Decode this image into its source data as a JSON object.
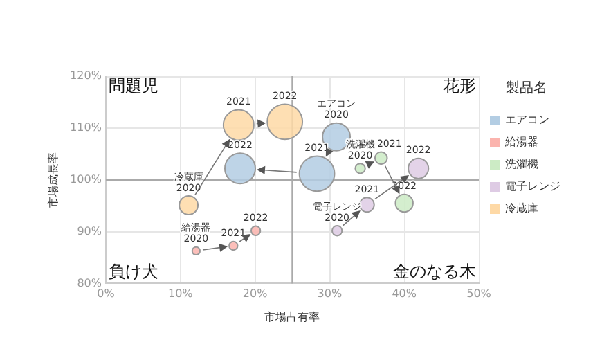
{
  "chart_data": {
    "type": "bubble",
    "xlabel": "市場占有率",
    "ylabel": "市場成長率",
    "legend_title": "製品名",
    "legend": "right",
    "grid": true,
    "xlim": [
      0,
      50
    ],
    "xticks": [
      {
        "value": 0,
        "label": "0%"
      },
      {
        "value": 10,
        "label": "10%"
      },
      {
        "value": 20,
        "label": "20%"
      },
      {
        "value": 30,
        "label": "30%"
      },
      {
        "value": 40,
        "label": "40%"
      },
      {
        "value": 50,
        "label": "50%"
      }
    ],
    "ylim": [
      80,
      120
    ],
    "yticks": [
      {
        "value": 80,
        "label": "80%"
      },
      {
        "value": 90,
        "label": "90%"
      },
      {
        "value": 100,
        "label": "100%"
      },
      {
        "value": 110,
        "label": "110%"
      },
      {
        "value": 120,
        "label": "120%"
      }
    ],
    "ref_lines": [
      {
        "axis": "x",
        "value": 25,
        "color": "#aaaaaa"
      },
      {
        "axis": "y",
        "value": 100,
        "color": "#aaaaaa"
      }
    ],
    "series": [
      {
        "name": "エアコン",
        "color": "#b3cde3",
        "x": [
          30.9,
          28.3,
          18.0
        ],
        "values": [
          108.3,
          101.2,
          102.2
        ],
        "sizes": [
          0.62,
          1,
          0.75
        ]
      },
      {
        "name": "給湯器",
        "color": "#fbb4ae",
        "x": [
          12.1,
          17.1,
          20.1
        ],
        "values": [
          86.3,
          87.3,
          90.2
        ],
        "sizes": [
          0.05,
          0.06,
          0.07
        ]
      },
      {
        "name": "洗濯機",
        "color": "#ccebc5",
        "x": [
          34.1,
          36.9,
          40.0
        ],
        "values": [
          102.2,
          104.2,
          95.5
        ],
        "sizes": [
          0.08,
          0.12,
          0.25
        ]
      },
      {
        "name": "電子レンジ",
        "color": "#decbe4",
        "x": [
          31.0,
          35.0,
          41.9
        ],
        "values": [
          90.2,
          95.2,
          102.2
        ],
        "sizes": [
          0.08,
          0.17,
          0.33
        ]
      },
      {
        "name": "冷蔵庫",
        "color": "#fed9a6",
        "x": [
          11.1,
          17.8,
          24.0
        ],
        "values": [
          95.1,
          110.6,
          111.2
        ],
        "sizes": [
          0.28,
          0.75,
          1
        ]
      }
    ],
    "annotations": [
      "問題児",
      "花形",
      "負け犬",
      "金のなる木",
      {
        "text": "エアコン\n2020",
        "x": 30.9,
        "y": 108.3
      },
      {
        "text": "2021",
        "x": 28.3,
        "y": 101.2
      },
      {
        "text": "2022",
        "x": 18.0,
        "y": 102.2
      },
      {
        "text": "給湯器\n2020",
        "x": 12.1,
        "y": 86.3
      },
      {
        "text": "2021",
        "x": 17.1,
        "y": 87.3
      },
      {
        "text": "2022",
        "x": 20.1,
        "y": 90.2
      },
      {
        "text": "洗濯機\n2020",
        "x": 34.1,
        "y": 102.2
      },
      {
        "text": "2021",
        "x": 36.9,
        "y": 104.2
      },
      {
        "text": "2022",
        "x": 40.0,
        "y": 95.5
      },
      {
        "text": "電子レンジ\n2020",
        "x": 31.0,
        "y": 90.2
      },
      {
        "text": "2021",
        "x": 35.0,
        "y": 95.2
      },
      {
        "text": "2022",
        "x": 41.9,
        "y": 102.2
      },
      {
        "text": "冷蔵庫\n2020",
        "x": 11.1,
        "y": 95.1
      },
      {
        "text": "2021",
        "x": 17.8,
        "y": 110.6
      },
      {
        "text": "2022",
        "x": 24.0,
        "y": 111.2
      }
    ]
  }
}
